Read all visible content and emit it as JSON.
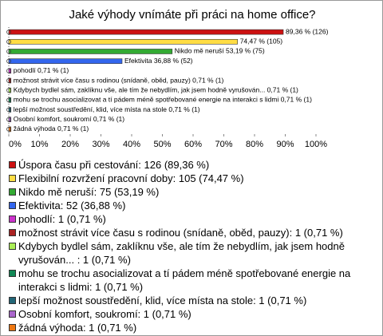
{
  "chart_data": {
    "type": "hbar",
    "title": "Jaké výhody vnímáte při práci na home office?",
    "categories": [
      "Úspora času při cestování: 126 (89,36 %)",
      "Flexibilní rozvržení pracovní doby: 105 (74,47 %)",
      "Nikdo mě neruší: 75 (53,19 %)",
      "Efektivita: 52 (36,88 %)",
      "pohodlí: 1 (0,71 %)",
      "možnost strávit více času s rodinou (snídaně, oběd, pauzy): 1 (0,71 %)",
      "Kdybych bydlel sám, zaklíknu vše, ale tím že nebydlím, jak jsem hodně vyrušován... : 1 (0,71 %)",
      "mohu se trochu asocializovat a tí pádem méně spotřebované energie na interakci s lidmi: 1 (0,71 %)",
      "lepší možnost soustředění, klid, více místa na stole: 1 (0,71 %)",
      "Osobní komfort, soukromí: 1 (0,71 %)",
      "žádná výhoda: 1 (0,71 %)"
    ],
    "values": [
      89.36,
      74.47,
      53.19,
      36.88,
      0.71,
      0.71,
      0.71,
      0.71,
      0.71,
      0.71,
      0.71
    ],
    "value_labels": [
      "89,36 % (126)",
      "74,47 % (105)",
      "Nikdo mě neruší 53,19 % (75)",
      "Efektivita 36,88 % (52)",
      "pohodlí 0,71 % (1)",
      "možnost strávit více času s rodinou (snídaně, oběd, pauzy) 0,71 % (1)",
      "Kdybych bydlel sám, zaklíknu vše, ale tím že nebydlím, jak jsem hodně vyrušován... 0,71 % (1)",
      "mohu se trochu asocializovat a tí pádem méně spotřebované energie na interakci s lidmi 0,71 % (1)",
      "lepší možnost soustředění, klid, více místa na stole 0,71 % (1)",
      "Osobní komfort, soukromí 0,71 % (1)",
      "žádná výhoda 0,71 % (1)"
    ],
    "colors": [
      "#cc1111",
      "#ffdd44",
      "#33aa33",
      "#3366ee",
      "#cc33cc",
      "#aa2222",
      "#aaee55",
      "#118855",
      "#226677",
      "#aa66cc",
      "#ee7711"
    ],
    "xlim": [
      0,
      100
    ],
    "xticks": [
      {
        "value": 0,
        "label": "0%"
      },
      {
        "value": 10,
        "label": "10%"
      },
      {
        "value": 20,
        "label": "20%"
      },
      {
        "value": 30,
        "label": "30%"
      },
      {
        "value": 40,
        "label": "40%"
      },
      {
        "value": 50,
        "label": "50%"
      },
      {
        "value": 60,
        "label": "60%"
      },
      {
        "value": 70,
        "label": "70%"
      },
      {
        "value": 80,
        "label": "80%"
      },
      {
        "value": 90,
        "label": "90%"
      },
      {
        "value": 100,
        "label": "100%"
      }
    ]
  }
}
